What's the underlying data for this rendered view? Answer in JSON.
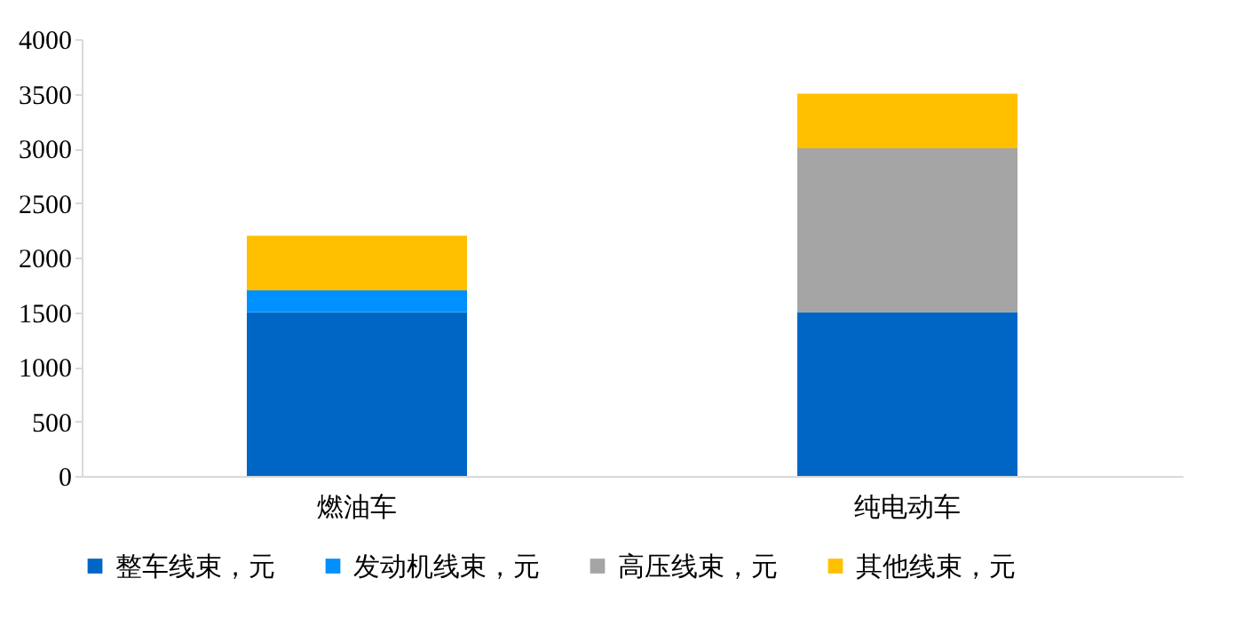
{
  "chart_data": {
    "type": "bar",
    "stacked": true,
    "categories": [
      "燃油车",
      "纯电动车"
    ],
    "series": [
      {
        "name": "整车线束，元",
        "color": "#0066c5",
        "values": [
          1500,
          1500
        ]
      },
      {
        "name": "发动机线束，元",
        "color": "#0090ff",
        "values": [
          200,
          0
        ]
      },
      {
        "name": "高压线束，元",
        "color": "#a5a5a5",
        "values": [
          0,
          1500
        ]
      },
      {
        "name": "其他线束，元",
        "color": "#ffc000",
        "values": [
          500,
          500
        ]
      }
    ],
    "ylim": [
      0,
      4000
    ],
    "yticks": [
      0,
      500,
      1000,
      1500,
      2000,
      2500,
      3000,
      3500,
      4000
    ],
    "grid": false,
    "legend": "bottom"
  }
}
